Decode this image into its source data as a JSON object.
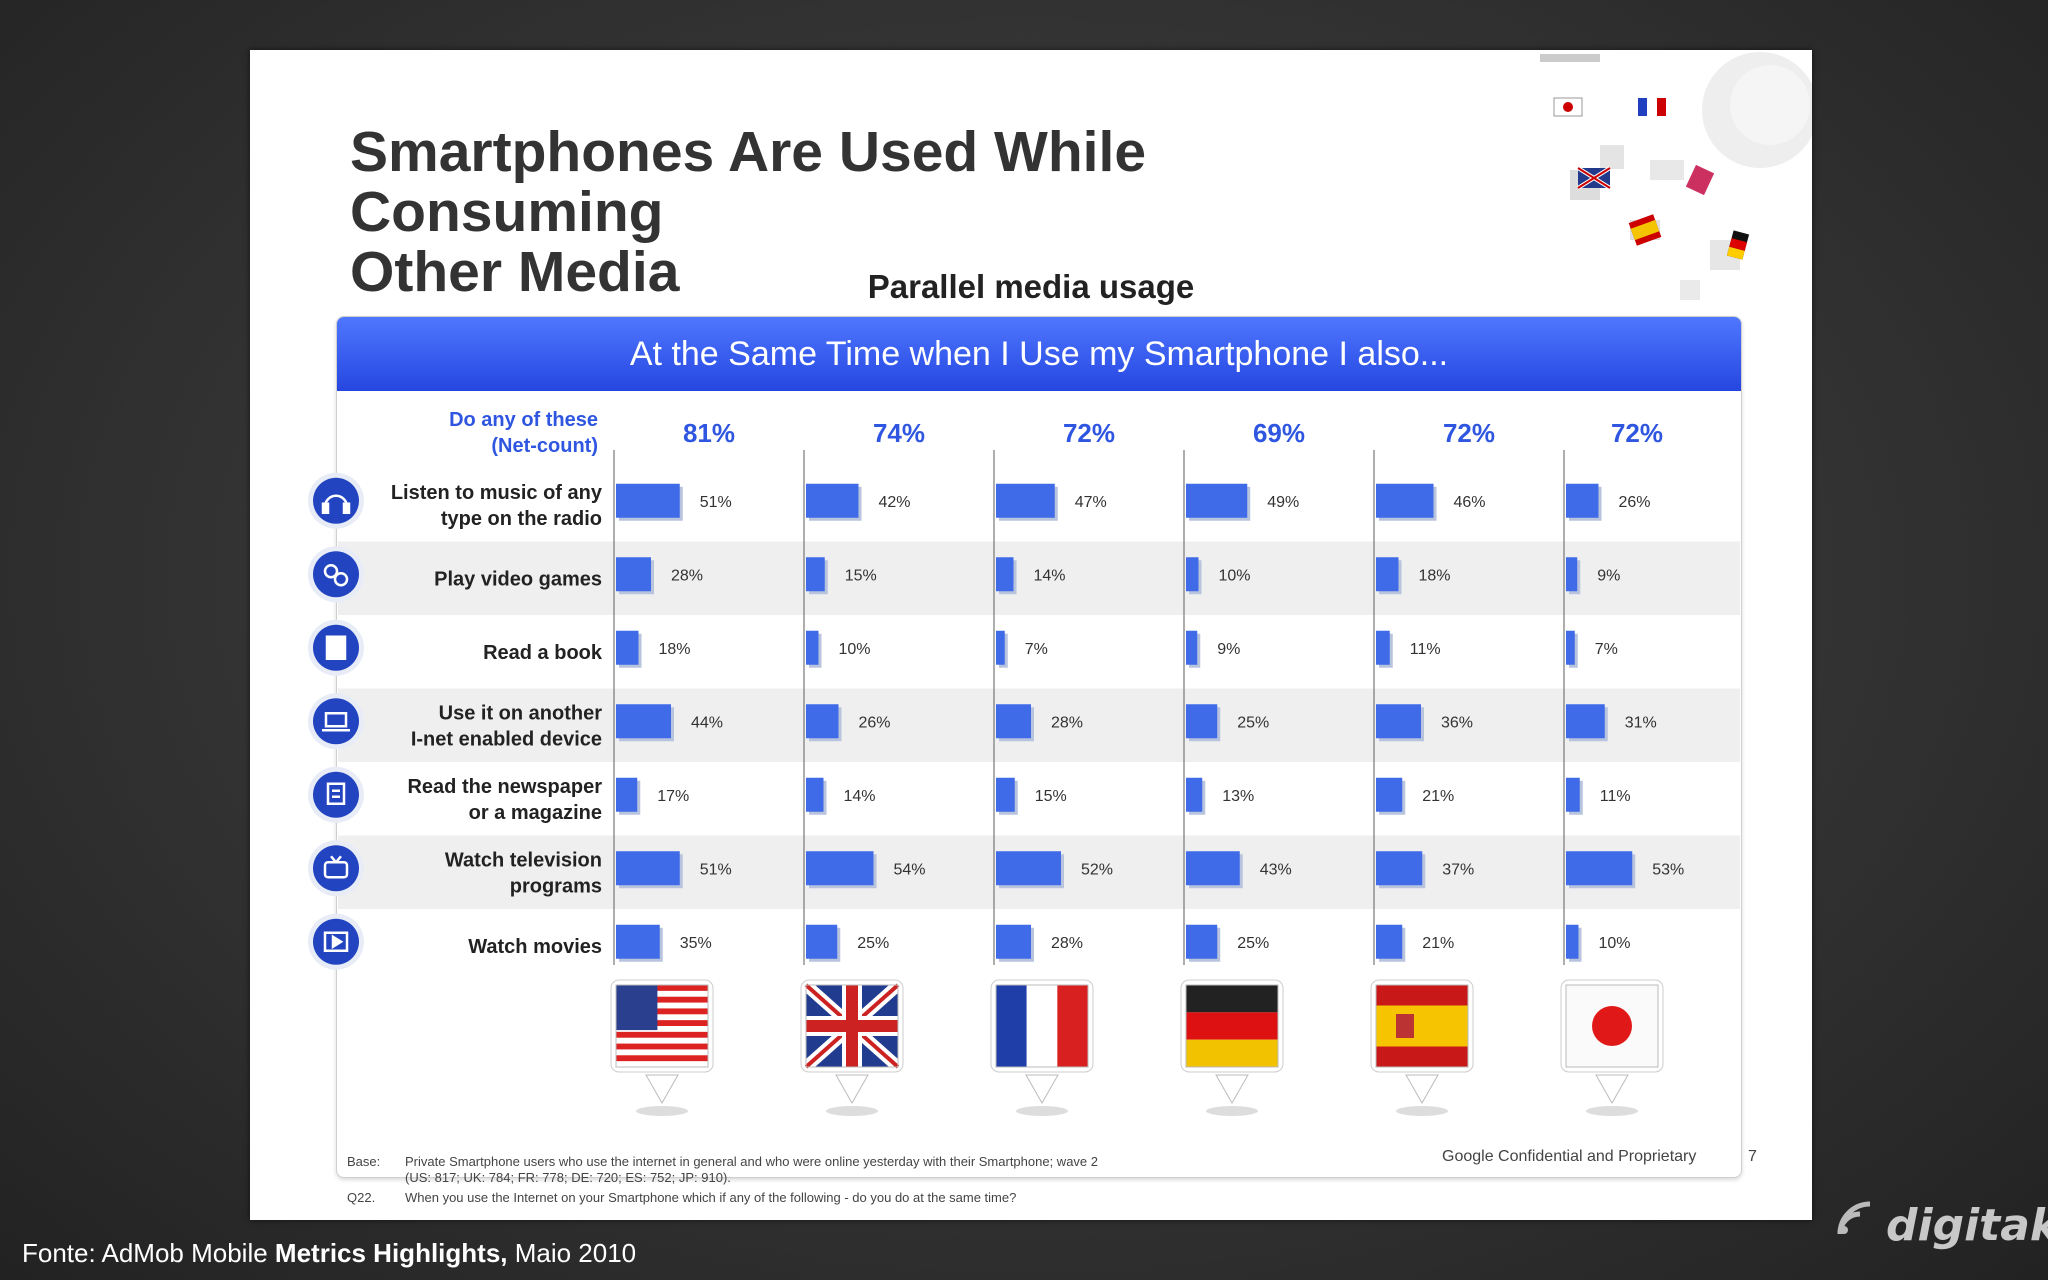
{
  "slide": {
    "title_line1": "Smartphones Are Used While Consuming",
    "title_line2": "Other Media",
    "subtitle": "Parallel media usage",
    "banner": "At the Same Time when I Use my Smartphone I also...",
    "net_label_line1": "Do any of these",
    "net_label_line2": "(Net-count)",
    "footer_base_label": "Base:",
    "footer_base_line1": "Private Smartphone users who use the internet in general and who were online yesterday with their Smartphone; wave 2",
    "footer_base_line2": "(US: 817; UK: 784; FR: 778; DE: 720; ES: 752; JP: 910).",
    "footer_q_label": "Q22.",
    "footer_q_text": "When you use the Internet on your Smartphone which if any of the following - do you do at the same time?",
    "confidential": "Google Confidential and Proprietary",
    "page_number": "7"
  },
  "source": {
    "prefix": "Fonte: AdMob Mobile ",
    "bold": "Metrics Highlights,",
    "suffix": " Maio 2010"
  },
  "brand": "digitaks",
  "colors": {
    "bar": "#3f6ae8",
    "net": "#2f56e0",
    "banner": "#2f56e8",
    "icon": "#2244c0",
    "row_stripe": "#efefef"
  },
  "chart_data": {
    "type": "bar",
    "categories": [
      "Listen to music of any type on the radio",
      "Play video games",
      "Read a book",
      "Use it on another I-net enabled device",
      "Read the newspaper or a magazine",
      "Watch television programs",
      "Watch movies"
    ],
    "category_icons": [
      "headphones-icon",
      "gamepad-icon",
      "book-icon",
      "laptop-icon",
      "newspaper-icon",
      "tv-icon",
      "movie-icon"
    ],
    "series": [
      {
        "flag": "us-flag",
        "net": "81%",
        "values": [
          51,
          28,
          18,
          44,
          17,
          51,
          35
        ]
      },
      {
        "flag": "uk-flag",
        "net": "74%",
        "values": [
          42,
          15,
          10,
          26,
          14,
          54,
          25
        ]
      },
      {
        "flag": "fr-flag",
        "net": "72%",
        "values": [
          47,
          14,
          7,
          28,
          15,
          52,
          28
        ]
      },
      {
        "flag": "de-flag",
        "net": "69%",
        "values": [
          49,
          10,
          9,
          25,
          13,
          43,
          25
        ]
      },
      {
        "flag": "es-flag",
        "net": "72%",
        "values": [
          46,
          18,
          11,
          36,
          21,
          37,
          21
        ]
      },
      {
        "flag": "jp-flag",
        "net": "72%",
        "values": [
          26,
          9,
          7,
          31,
          11,
          53,
          10
        ]
      }
    ],
    "value_suffix": "%"
  }
}
